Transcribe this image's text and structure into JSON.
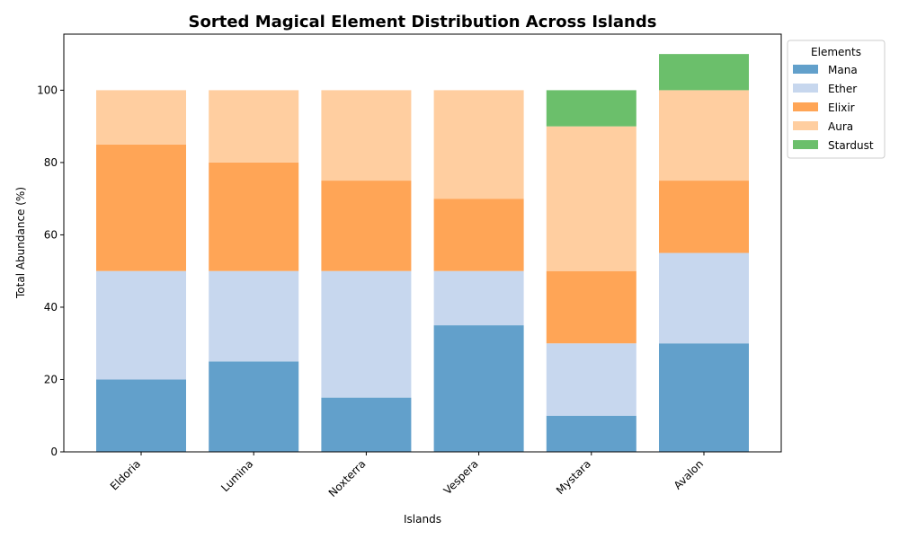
{
  "chart_data": {
    "type": "bar",
    "stacked": true,
    "title": "Sorted Magical Element Distribution Across Islands",
    "xlabel": "Islands",
    "ylabel": "Total Abundance (%)",
    "ylim": [
      0,
      115.5
    ],
    "yticks": [
      0,
      20,
      40,
      60,
      80,
      100
    ],
    "categories": [
      "Eldoria",
      "Lumina",
      "Noxterra",
      "Vespera",
      "Mystara",
      "Avalon"
    ],
    "series": [
      {
        "name": "Mana",
        "color": "#62a0cb",
        "values": [
          20,
          25,
          15,
          35,
          10,
          30
        ]
      },
      {
        "name": "Ether",
        "color": "#c7d7ee",
        "values": [
          30,
          25,
          35,
          15,
          20,
          25
        ]
      },
      {
        "name": "Elixir",
        "color": "#ffa556",
        "values": [
          35,
          30,
          25,
          20,
          20,
          20
        ]
      },
      {
        "name": "Aura",
        "color": "#ffcea0",
        "values": [
          15,
          20,
          25,
          30,
          40,
          25
        ]
      },
      {
        "name": "Stardust",
        "color": "#6bbf6b",
        "values": [
          0,
          0,
          0,
          0,
          10,
          10
        ]
      }
    ],
    "legend": {
      "title": "Elements",
      "position": "outside-top-right"
    },
    "grid": false
  }
}
